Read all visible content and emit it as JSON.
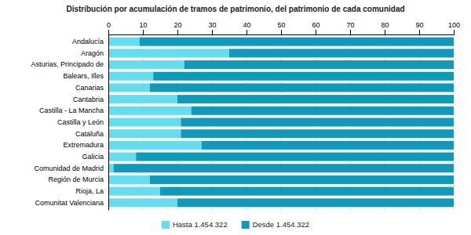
{
  "chart_data": {
    "type": "bar",
    "orientation": "horizontal",
    "stacked": true,
    "title": "Distribución por acumulación de tramos de patrimonio, del patrimonio de cada comunidad",
    "categories": [
      "Andalucía",
      "Aragón",
      "Asturias, Principado de",
      "Balears, Illes",
      "Canarias",
      "Cantabria",
      "Castilla - La Mancha",
      "Castilla y León",
      "Cataluña",
      "Extremadura",
      "Galicia",
      "Comunidad de Madrid",
      "Región de Murcia",
      "Rioja, La",
      "Comunitat Valenciana"
    ],
    "series": [
      {
        "name": "Hasta 1.454.322",
        "color": "#66ddee",
        "values": [
          9.0,
          35.0,
          22.0,
          13.0,
          12.0,
          20.0,
          24.0,
          21.0,
          21.0,
          27.0,
          8.0,
          1.5,
          12.0,
          15.0,
          20.0
        ]
      },
      {
        "name": "Desde 1.454.322",
        "color": "#1199bb",
        "values": [
          91.0,
          65.0,
          78.0,
          87.0,
          88.0,
          80.0,
          76.0,
          79.0,
          79.0,
          73.0,
          92.0,
          98.5,
          88.0,
          85.0,
          80.0
        ]
      }
    ],
    "xlim": [
      0,
      100
    ],
    "xticks": [
      0,
      10,
      20,
      30,
      40,
      50,
      60,
      70,
      80,
      90,
      100
    ],
    "grid": true,
    "legend": "bottom"
  }
}
